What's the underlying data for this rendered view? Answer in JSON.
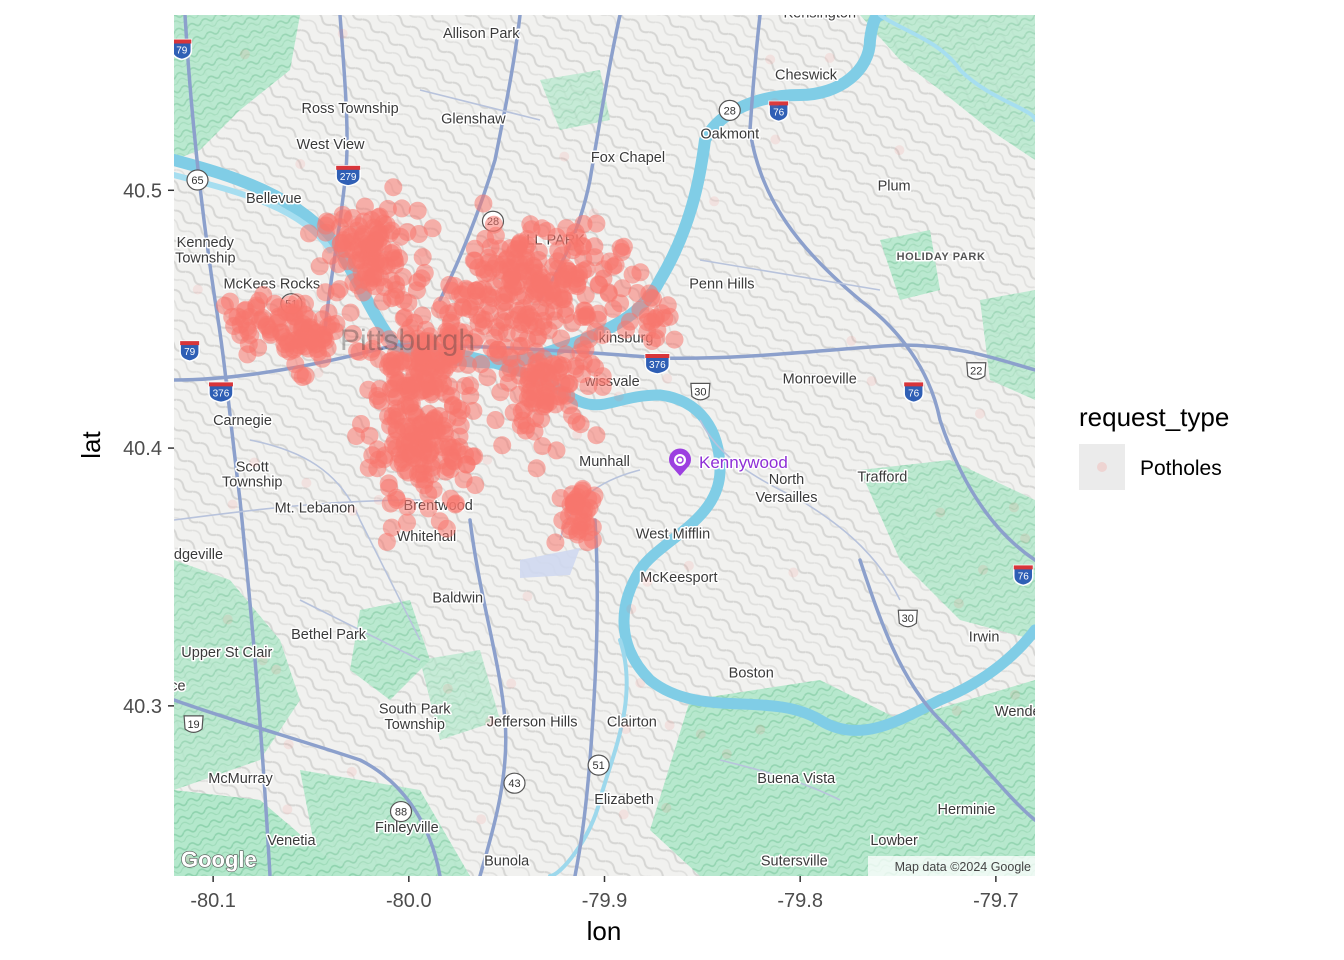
{
  "chart": {
    "xlabel": "lon",
    "ylabel": "lat",
    "x_ticks": [
      {
        "value": -80.1,
        "label": "-80.1"
      },
      {
        "value": -80.0,
        "label": "-80.0"
      },
      {
        "value": -79.9,
        "label": "-79.9"
      },
      {
        "value": -79.8,
        "label": "-79.8"
      },
      {
        "value": -79.7,
        "label": "-79.7"
      }
    ],
    "y_ticks": [
      {
        "value": 40.3,
        "label": "40.3"
      },
      {
        "value": 40.4,
        "label": "40.4"
      },
      {
        "value": 40.5,
        "label": "40.5"
      }
    ],
    "xlim": [
      -80.12,
      -79.68
    ],
    "ylim": [
      40.234,
      40.568
    ],
    "legend": {
      "title": "request_type",
      "items": [
        {
          "label": "Potholes",
          "color": "#F8766D"
        }
      ],
      "placement": "right"
    },
    "point_color": "#F8766D"
  },
  "map": {
    "attribution": "Map data ©2024 Google",
    "logo": "Google",
    "highlight_place": "Kennywood",
    "center_label": "Pittsburgh",
    "places": [
      {
        "name": "Kensington",
        "lon": -79.79,
        "lat": 40.567
      },
      {
        "name": "Allison Park",
        "lon": -79.963,
        "lat": 40.559
      },
      {
        "name": "Cheswick",
        "lon": -79.797,
        "lat": 40.543
      },
      {
        "name": "Ross Township",
        "lon": -80.03,
        "lat": 40.53
      },
      {
        "name": "Glenshaw",
        "lon": -79.967,
        "lat": 40.526
      },
      {
        "name": "Oakmont",
        "lon": -79.836,
        "lat": 40.52
      },
      {
        "name": "West View",
        "lon": -80.04,
        "lat": 40.516
      },
      {
        "name": "Fox Chapel",
        "lon": -79.888,
        "lat": 40.511
      },
      {
        "name": "Plum",
        "lon": -79.752,
        "lat": 40.5
      },
      {
        "name": "Bellevue",
        "lon": -80.069,
        "lat": 40.495
      },
      {
        "name": "Kennedy",
        "lon": -80.104,
        "lat": 40.478
      },
      {
        "name": "Township",
        "lon": -80.104,
        "lat": 40.472
      },
      {
        "name": "McKees Rocks",
        "lon": -80.07,
        "lat": 40.462
      },
      {
        "name": "Penn Hills",
        "lon": -79.84,
        "lat": 40.462
      },
      {
        "name": "Monroeville",
        "lon": -79.79,
        "lat": 40.425
      },
      {
        "name": "Carnegie",
        "lon": -80.085,
        "lat": 40.409
      },
      {
        "name": "Munhall",
        "lon": -79.9,
        "lat": 40.393
      },
      {
        "name": "Scott",
        "lon": -80.08,
        "lat": 40.391
      },
      {
        "name": "Township",
        "lon": -80.08,
        "lat": 40.385
      },
      {
        "name": "North",
        "lon": -79.807,
        "lat": 40.386
      },
      {
        "name": "Trafford",
        "lon": -79.758,
        "lat": 40.387
      },
      {
        "name": "Versailles",
        "lon": -79.807,
        "lat": 40.379
      },
      {
        "name": "Mt. Lebanon",
        "lon": -80.048,
        "lat": 40.375
      },
      {
        "name": "Brentwood",
        "lon": -79.985,
        "lat": 40.376
      },
      {
        "name": "West Mifflin",
        "lon": -79.865,
        "lat": 40.365
      },
      {
        "name": "Whitehall",
        "lon": -79.991,
        "lat": 40.364
      },
      {
        "name": "Bridgeville",
        "lon": -80.112,
        "lat": 40.357
      },
      {
        "name": "McKeesport",
        "lon": -79.862,
        "lat": 40.348
      },
      {
        "name": "Baldwin",
        "lon": -79.975,
        "lat": 40.34
      },
      {
        "name": "Irwin",
        "lon": -79.706,
        "lat": 40.325
      },
      {
        "name": "Bethel Park",
        "lon": -80.041,
        "lat": 40.326
      },
      {
        "name": "Upper St Clair",
        "lon": -80.093,
        "lat": 40.319
      },
      {
        "name": "Boston",
        "lon": -79.825,
        "lat": 40.311
      },
      {
        "name": "South Park",
        "lon": -79.997,
        "lat": 40.297
      },
      {
        "name": "Township",
        "lon": -79.997,
        "lat": 40.291
      },
      {
        "name": "Jefferson Hills",
        "lon": -79.937,
        "lat": 40.292
      },
      {
        "name": "Clairton",
        "lon": -79.886,
        "lat": 40.292
      },
      {
        "name": "Wendel",
        "lon": -79.688,
        "lat": 40.296
      },
      {
        "name": "McMurray",
        "lon": -80.086,
        "lat": 40.27
      },
      {
        "name": "Buena Vista",
        "lon": -79.802,
        "lat": 40.27
      },
      {
        "name": "Elizabeth",
        "lon": -79.89,
        "lat": 40.262
      },
      {
        "name": "Herminie",
        "lon": -79.715,
        "lat": 40.258
      },
      {
        "name": "Finleyville",
        "lon": -80.001,
        "lat": 40.251
      },
      {
        "name": "Venetia",
        "lon": -80.06,
        "lat": 40.246
      },
      {
        "name": "Lowber",
        "lon": -79.752,
        "lat": 40.246
      },
      {
        "name": "Bunola",
        "lon": -79.95,
        "lat": 40.238
      },
      {
        "name": "Sutersville",
        "lon": -79.803,
        "lat": 40.238
      }
    ],
    "caps_places": [
      {
        "name": "HOLIDAY PARK",
        "lon": -79.728,
        "lat": 40.473
      }
    ],
    "partial_places": [
      {
        "name": "Millvale",
        "text": "LL PARK",
        "lon": -79.925,
        "lat": 40.479
      },
      {
        "name": "Homestead",
        "text": "kinsburg",
        "lon": -79.889,
        "lat": 40.441
      },
      {
        "name": "Swissvale",
        "text": "wissvale",
        "lon": -79.896,
        "lat": 40.424
      },
      {
        "name": "Fawn",
        "text": "ce",
        "lon": -80.118,
        "lat": 40.306
      }
    ],
    "shields": [
      {
        "label": "79",
        "lon": -80.116,
        "lat": 40.555,
        "kind": "interstate"
      },
      {
        "label": "279",
        "lon": -80.031,
        "lat": 40.506,
        "kind": "interstate"
      },
      {
        "label": "65",
        "lon": -80.108,
        "lat": 40.504,
        "kind": "state"
      },
      {
        "label": "28",
        "lon": -79.836,
        "lat": 40.531,
        "kind": "state"
      },
      {
        "label": "76",
        "lon": -79.811,
        "lat": 40.531,
        "kind": "interstate"
      },
      {
        "label": "28",
        "lon": -79.957,
        "lat": 40.488,
        "kind": "state"
      },
      {
        "label": "51",
        "lon": -80.06,
        "lat": 40.456,
        "kind": "state"
      },
      {
        "label": "79",
        "lon": -80.112,
        "lat": 40.438,
        "kind": "interstate"
      },
      {
        "label": "376",
        "lon": -80.096,
        "lat": 40.422,
        "kind": "interstate"
      },
      {
        "label": "376",
        "lon": -79.873,
        "lat": 40.433,
        "kind": "interstate"
      },
      {
        "label": "30",
        "lon": -79.851,
        "lat": 40.422,
        "kind": "us"
      },
      {
        "label": "76",
        "lon": -79.742,
        "lat": 40.422,
        "kind": "interstate"
      },
      {
        "label": "22",
        "lon": -79.71,
        "lat": 40.43,
        "kind": "us"
      },
      {
        "label": "76",
        "lon": -79.686,
        "lat": 40.351,
        "kind": "interstate"
      },
      {
        "label": "30",
        "lon": -79.745,
        "lat": 40.334,
        "kind": "us"
      },
      {
        "label": "19",
        "lon": -80.11,
        "lat": 40.293,
        "kind": "us"
      },
      {
        "label": "51",
        "lon": -79.903,
        "lat": 40.277,
        "kind": "state"
      },
      {
        "label": "43",
        "lon": -79.946,
        "lat": 40.27,
        "kind": "state"
      },
      {
        "label": "88",
        "lon": -80.004,
        "lat": 40.259,
        "kind": "state"
      }
    ]
  },
  "chart_data": {
    "type": "scatter",
    "title": "",
    "xlabel": "lon",
    "ylabel": "lat",
    "xlim": [
      -80.12,
      -79.68
    ],
    "ylim": [
      40.234,
      40.568
    ],
    "series": [
      {
        "name": "Potholes",
        "color": "#F8766D",
        "note_regions": [
          {
            "center": [
              -80.02,
              40.475
            ],
            "spread": [
              0.022,
              0.016
            ],
            "count": 110
          },
          {
            "center": [
              -79.935,
              40.465
            ],
            "spread": [
              0.04,
              0.02
            ],
            "count": 220
          },
          {
            "center": [
              -80.055,
              40.445
            ],
            "spread": [
              0.02,
              0.012
            ],
            "count": 80
          },
          {
            "center": [
              -79.99,
              40.435
            ],
            "spread": [
              0.025,
              0.018
            ],
            "count": 130
          },
          {
            "center": [
              -79.995,
              40.4
            ],
            "spread": [
              0.025,
              0.022
            ],
            "count": 160
          },
          {
            "center": [
              -79.93,
              40.425
            ],
            "spread": [
              0.025,
              0.018
            ],
            "count": 110
          },
          {
            "center": [
              -79.912,
              40.375
            ],
            "spread": [
              0.01,
              0.012
            ],
            "count": 40
          },
          {
            "center": [
              -80.08,
              40.45
            ],
            "spread": [
              0.015,
              0.01
            ],
            "count": 25
          },
          {
            "center": [
              -79.875,
              40.452
            ],
            "spread": [
              0.01,
              0.01
            ],
            "count": 20
          }
        ]
      }
    ]
  }
}
